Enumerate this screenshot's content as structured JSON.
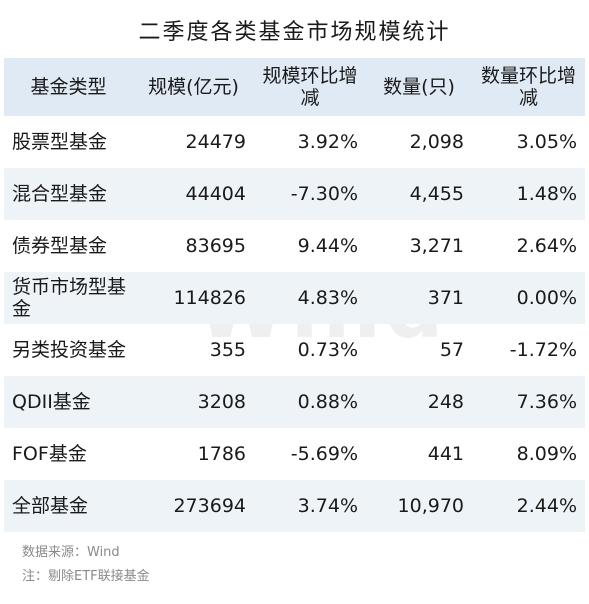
{
  "title": "二季度各类基金市场规模统计",
  "watermark": "Wind",
  "header": [
    "基金类型",
    "规模(亿元)",
    "规模环比增减",
    "数量(只)",
    "数量环比增减"
  ],
  "rows": [
    [
      "股票型基金",
      "24479",
      "3.92%",
      "2,098",
      "3.05%"
    ],
    [
      "混合型基金",
      "44404",
      "-7.30%",
      "4,455",
      "1.48%"
    ],
    [
      "债券型基金",
      "83695",
      "9.44%",
      "3,271",
      "2.64%"
    ],
    [
      "货币市场型基金",
      "114826",
      "4.83%",
      "371",
      "0.00%"
    ],
    [
      "另类投资基金",
      "355",
      "0.73%",
      "57",
      "-1.72%"
    ],
    [
      "QDII基金",
      "3208",
      "0.88%",
      "248",
      "7.36%"
    ],
    [
      "FOF基金",
      "1786",
      "-5.69%",
      "441",
      "8.09%"
    ],
    [
      "全部基金",
      "273694",
      "3.74%",
      "10,970",
      "2.44%"
    ]
  ],
  "notes": {
    "source": "数据来源：Wind",
    "remark": "注：剔除ETF联接基金"
  }
}
